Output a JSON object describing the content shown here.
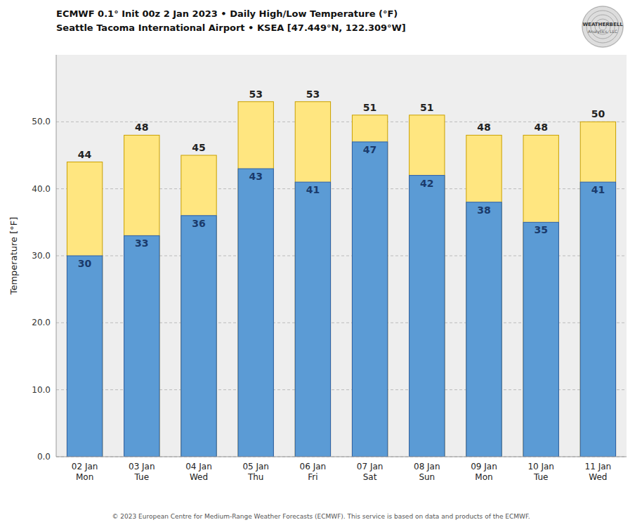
{
  "chart_data": {
    "type": "bar",
    "title": "ECMWF 0.1° Init 00z 2 Jan 2023 • Daily High/Low Temperature (°F)",
    "subtitle": "Seattle Tacoma International Airport • KSEA [47.449°N, 122.309°W]",
    "ylabel": "Temperature [°F]",
    "annotations": [
      "© 2023 European Centre for Medium-Range Weather Forecasts (ECMWF). This service is based on data and products of the ECMWF.",
      "WEATHERBELL",
      "Analytics, LLC"
    ],
    "categories": [
      "02 Jan\nMon",
      "03 Jan\nTue",
      "04 Jan\nWed",
      "05 Jan\nThu",
      "06 Jan\nFri",
      "07 Jan\nSat",
      "08 Jan\nSun",
      "09 Jan\nMon",
      "10 Jan\nTue",
      "11 Jan\nWed"
    ],
    "series": [
      {
        "color": "#FFE680",
        "values": [
          44,
          48,
          45,
          53,
          53,
          51,
          51,
          48,
          48,
          50
        ]
      },
      {
        "color": "#5B9BD5",
        "values": [
          30,
          33,
          36,
          43,
          41,
          47,
          42,
          38,
          35,
          41
        ]
      }
    ],
    "stacked": false,
    "data_labels": true,
    "grid": true,
    "ylim": [
      0,
      60
    ],
    "yticks": [
      {
        "value": 0,
        "label": "0.0"
      },
      {
        "value": 10,
        "label": "10.0"
      },
      {
        "value": 20,
        "label": "20.0"
      },
      {
        "value": 30,
        "label": "30.0"
      },
      {
        "value": 40,
        "label": "40.0"
      },
      {
        "value": 50,
        "label": "50.0"
      }
    ]
  }
}
